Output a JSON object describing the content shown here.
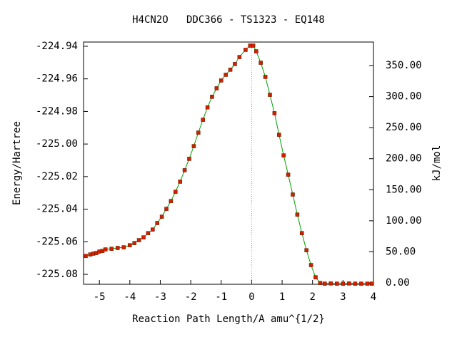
{
  "chart_data": {
    "type": "line",
    "title": "H4CN2O   DDC366 - TS1323 - EQ148",
    "xlabel": "Reaction Path Length/A amu^{1/2}",
    "ylabel": "Energy/Hartree",
    "y2label": "kJ/mol",
    "x": [
      -5.45,
      -5.3,
      -5.2,
      -5.1,
      -5.0,
      -4.9,
      -4.8,
      -4.6,
      -4.4,
      -4.2,
      -4.0,
      -3.85,
      -3.7,
      -3.55,
      -3.4,
      -3.25,
      -3.1,
      -2.95,
      -2.8,
      -2.65,
      -2.5,
      -2.35,
      -2.2,
      -2.05,
      -1.9,
      -1.75,
      -1.6,
      -1.45,
      -1.3,
      -1.15,
      -1.0,
      -0.85,
      -0.7,
      -0.55,
      -0.4,
      -0.2,
      -0.05,
      0.05,
      0.15,
      0.3,
      0.45,
      0.6,
      0.75,
      0.9,
      1.05,
      1.2,
      1.35,
      1.5,
      1.65,
      1.8,
      1.95,
      2.1,
      2.25,
      2.4,
      2.6,
      2.8,
      3.0,
      3.2,
      3.4,
      3.6,
      3.8,
      3.95
    ],
    "series": [
      {
        "color": "#00a000",
        "marker_color": "#d02000",
        "values": [
          -225.0687,
          -225.0678,
          -225.0673,
          -225.0669,
          -225.066,
          -225.0656,
          -225.0647,
          -225.0643,
          -225.0638,
          -225.0634,
          -225.0621,
          -225.0608,
          -225.059,
          -225.0573,
          -225.0547,
          -225.0525,
          -225.0485,
          -225.0446,
          -225.0398,
          -225.035,
          -225.0293,
          -225.0231,
          -225.0161,
          -225.0091,
          -225.0013,
          -224.993,
          -224.9851,
          -224.9775,
          -224.971,
          -224.9658,
          -224.961,
          -224.9575,
          -224.9544,
          -224.9509,
          -224.9466,
          -224.9422,
          -224.9396,
          -224.9396,
          -224.9431,
          -224.9501,
          -224.9588,
          -224.9698,
          -224.9811,
          -224.9943,
          -225.007,
          -225.0188,
          -225.031,
          -225.0433,
          -225.0547,
          -225.0652,
          -225.0743,
          -225.0818,
          -225.0853,
          -225.0857,
          -225.0856,
          -225.0857,
          -225.0857,
          -225.0856,
          -225.0857,
          -225.0857,
          -225.0857,
          -225.0857
        ]
      }
    ],
    "xlim": [
      -5.52,
      4.0
    ],
    "xticks": [
      -5,
      -4,
      -3,
      -2,
      -1,
      0,
      1,
      2,
      3,
      4
    ],
    "ylim": [
      -225.0861,
      -224.9374
    ],
    "yticks": [
      -224.94,
      -224.96,
      -224.98,
      {
        "value": -225.0,
        "label": "-225.00"
      },
      -225.02,
      -225.04,
      -225.06,
      -225.08
    ],
    "y2lim": [
      -2.3,
      387.9
    ],
    "y2ticks": [
      {
        "value": 0,
        "label": "0.00"
      },
      {
        "value": 50,
        "label": "50.00"
      },
      {
        "value": 100,
        "label": "100.00"
      },
      {
        "value": 150,
        "label": "150.00"
      },
      {
        "value": 200,
        "label": "200.00"
      },
      {
        "value": 250,
        "label": "250.00"
      },
      {
        "value": 300,
        "label": "300.00"
      },
      {
        "value": 350,
        "label": "350.00"
      }
    ]
  }
}
